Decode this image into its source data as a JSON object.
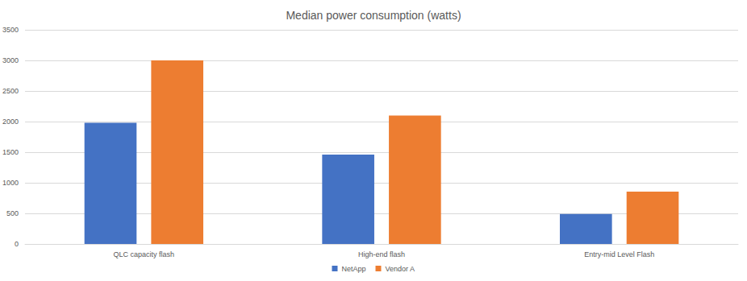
{
  "chart_data": {
    "type": "bar",
    "title": "Median power consumption (watts)",
    "categories": [
      "QLC capacity flash",
      "High-end flash",
      "Entry-mid Level Flash"
    ],
    "series": [
      {
        "name": "NetApp",
        "color": "#4472c4",
        "values": [
          1980,
          1460,
          490
        ]
      },
      {
        "name": "Vendor A",
        "color": "#ed7d31",
        "values": [
          3000,
          2100,
          855
        ]
      }
    ],
    "ylim": [
      0,
      3500
    ],
    "yticks": [
      0,
      500,
      1000,
      1500,
      2000,
      2500,
      3000,
      3500
    ],
    "grid": true,
    "legend": "bottom"
  }
}
